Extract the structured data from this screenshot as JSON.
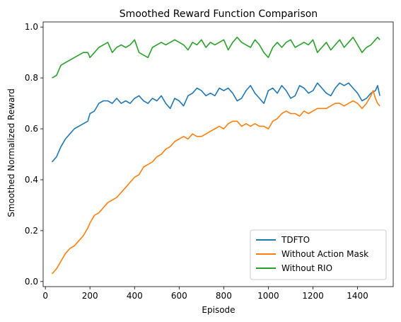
{
  "chart_data": {
    "type": "line",
    "title": "Smoothed Reward Function Comparison",
    "xlabel": "Episode",
    "ylabel": "Smoothed Normalized Reward",
    "xlim": [
      -10,
      1560
    ],
    "ylim": [
      -0.02,
      1.02
    ],
    "xticks": [
      0,
      200,
      400,
      600,
      800,
      1000,
      1200,
      1400
    ],
    "yticks": [
      0.0,
      0.2,
      0.4,
      0.6,
      0.8,
      1.0
    ],
    "grid": false,
    "legend_position": "lower-right",
    "series": [
      {
        "name": "TDFTO",
        "color": "#1f77b4",
        "points": [
          [
            30,
            0.47
          ],
          [
            50,
            0.49
          ],
          [
            70,
            0.53
          ],
          [
            90,
            0.56
          ],
          [
            110,
            0.58
          ],
          [
            130,
            0.6
          ],
          [
            150,
            0.61
          ],
          [
            170,
            0.62
          ],
          [
            190,
            0.63
          ],
          [
            200,
            0.66
          ],
          [
            220,
            0.67
          ],
          [
            240,
            0.7
          ],
          [
            260,
            0.71
          ],
          [
            280,
            0.71
          ],
          [
            300,
            0.7
          ],
          [
            320,
            0.72
          ],
          [
            340,
            0.7
          ],
          [
            360,
            0.71
          ],
          [
            380,
            0.7
          ],
          [
            400,
            0.72
          ],
          [
            420,
            0.73
          ],
          [
            440,
            0.71
          ],
          [
            460,
            0.7
          ],
          [
            480,
            0.72
          ],
          [
            500,
            0.71
          ],
          [
            520,
            0.73
          ],
          [
            540,
            0.7
          ],
          [
            560,
            0.68
          ],
          [
            580,
            0.72
          ],
          [
            600,
            0.71
          ],
          [
            620,
            0.69
          ],
          [
            640,
            0.73
          ],
          [
            660,
            0.74
          ],
          [
            680,
            0.76
          ],
          [
            700,
            0.75
          ],
          [
            720,
            0.73
          ],
          [
            740,
            0.74
          ],
          [
            760,
            0.73
          ],
          [
            780,
            0.76
          ],
          [
            800,
            0.75
          ],
          [
            820,
            0.76
          ],
          [
            840,
            0.74
          ],
          [
            860,
            0.71
          ],
          [
            880,
            0.72
          ],
          [
            900,
            0.75
          ],
          [
            920,
            0.77
          ],
          [
            940,
            0.74
          ],
          [
            960,
            0.72
          ],
          [
            980,
            0.7
          ],
          [
            1000,
            0.75
          ],
          [
            1020,
            0.76
          ],
          [
            1040,
            0.74
          ],
          [
            1060,
            0.77
          ],
          [
            1080,
            0.75
          ],
          [
            1100,
            0.72
          ],
          [
            1120,
            0.73
          ],
          [
            1140,
            0.77
          ],
          [
            1160,
            0.76
          ],
          [
            1180,
            0.74
          ],
          [
            1200,
            0.75
          ],
          [
            1220,
            0.78
          ],
          [
            1240,
            0.76
          ],
          [
            1260,
            0.74
          ],
          [
            1280,
            0.73
          ],
          [
            1300,
            0.76
          ],
          [
            1320,
            0.78
          ],
          [
            1340,
            0.77
          ],
          [
            1360,
            0.78
          ],
          [
            1380,
            0.76
          ],
          [
            1400,
            0.74
          ],
          [
            1420,
            0.71
          ],
          [
            1440,
            0.72
          ],
          [
            1460,
            0.74
          ],
          [
            1480,
            0.75
          ],
          [
            1490,
            0.77
          ],
          [
            1500,
            0.73
          ]
        ]
      },
      {
        "name": "Without Action Mask",
        "color": "#ff7f0e",
        "points": [
          [
            30,
            0.03
          ],
          [
            50,
            0.05
          ],
          [
            70,
            0.08
          ],
          [
            90,
            0.11
          ],
          [
            110,
            0.13
          ],
          [
            130,
            0.14
          ],
          [
            150,
            0.16
          ],
          [
            170,
            0.18
          ],
          [
            190,
            0.21
          ],
          [
            200,
            0.23
          ],
          [
            220,
            0.26
          ],
          [
            240,
            0.27
          ],
          [
            260,
            0.29
          ],
          [
            280,
            0.31
          ],
          [
            300,
            0.32
          ],
          [
            320,
            0.33
          ],
          [
            340,
            0.35
          ],
          [
            360,
            0.37
          ],
          [
            380,
            0.39
          ],
          [
            400,
            0.41
          ],
          [
            420,
            0.42
          ],
          [
            440,
            0.45
          ],
          [
            460,
            0.46
          ],
          [
            480,
            0.47
          ],
          [
            500,
            0.49
          ],
          [
            520,
            0.5
          ],
          [
            540,
            0.52
          ],
          [
            560,
            0.53
          ],
          [
            580,
            0.55
          ],
          [
            600,
            0.56
          ],
          [
            620,
            0.57
          ],
          [
            640,
            0.56
          ],
          [
            660,
            0.58
          ],
          [
            680,
            0.57
          ],
          [
            700,
            0.57
          ],
          [
            720,
            0.58
          ],
          [
            740,
            0.59
          ],
          [
            760,
            0.6
          ],
          [
            780,
            0.61
          ],
          [
            800,
            0.6
          ],
          [
            820,
            0.62
          ],
          [
            840,
            0.63
          ],
          [
            860,
            0.63
          ],
          [
            880,
            0.61
          ],
          [
            900,
            0.62
          ],
          [
            920,
            0.61
          ],
          [
            940,
            0.62
          ],
          [
            960,
            0.61
          ],
          [
            980,
            0.61
          ],
          [
            1000,
            0.6
          ],
          [
            1020,
            0.63
          ],
          [
            1040,
            0.64
          ],
          [
            1060,
            0.66
          ],
          [
            1080,
            0.67
          ],
          [
            1100,
            0.66
          ],
          [
            1120,
            0.66
          ],
          [
            1140,
            0.65
          ],
          [
            1160,
            0.67
          ],
          [
            1180,
            0.66
          ],
          [
            1200,
            0.67
          ],
          [
            1220,
            0.68
          ],
          [
            1240,
            0.68
          ],
          [
            1260,
            0.68
          ],
          [
            1280,
            0.69
          ],
          [
            1300,
            0.7
          ],
          [
            1320,
            0.7
          ],
          [
            1340,
            0.69
          ],
          [
            1360,
            0.7
          ],
          [
            1380,
            0.71
          ],
          [
            1400,
            0.7
          ],
          [
            1420,
            0.68
          ],
          [
            1440,
            0.7
          ],
          [
            1460,
            0.73
          ],
          [
            1470,
            0.75
          ],
          [
            1480,
            0.72
          ],
          [
            1490,
            0.7
          ],
          [
            1500,
            0.69
          ]
        ]
      },
      {
        "name": "Without RIO",
        "color": "#2ca02c",
        "points": [
          [
            30,
            0.8
          ],
          [
            50,
            0.81
          ],
          [
            70,
            0.85
          ],
          [
            90,
            0.86
          ],
          [
            110,
            0.87
          ],
          [
            130,
            0.88
          ],
          [
            150,
            0.89
          ],
          [
            170,
            0.9
          ],
          [
            190,
            0.9
          ],
          [
            200,
            0.88
          ],
          [
            220,
            0.9
          ],
          [
            240,
            0.92
          ],
          [
            260,
            0.93
          ],
          [
            280,
            0.94
          ],
          [
            300,
            0.9
          ],
          [
            320,
            0.92
          ],
          [
            340,
            0.93
          ],
          [
            360,
            0.92
          ],
          [
            380,
            0.93
          ],
          [
            400,
            0.95
          ],
          [
            420,
            0.9
          ],
          [
            440,
            0.89
          ],
          [
            460,
            0.88
          ],
          [
            480,
            0.92
          ],
          [
            500,
            0.93
          ],
          [
            520,
            0.94
          ],
          [
            540,
            0.93
          ],
          [
            560,
            0.94
          ],
          [
            580,
            0.95
          ],
          [
            600,
            0.94
          ],
          [
            620,
            0.93
          ],
          [
            640,
            0.91
          ],
          [
            660,
            0.94
          ],
          [
            680,
            0.93
          ],
          [
            700,
            0.95
          ],
          [
            720,
            0.92
          ],
          [
            740,
            0.94
          ],
          [
            760,
            0.93
          ],
          [
            780,
            0.94
          ],
          [
            800,
            0.95
          ],
          [
            820,
            0.91
          ],
          [
            840,
            0.94
          ],
          [
            860,
            0.96
          ],
          [
            880,
            0.94
          ],
          [
            900,
            0.93
          ],
          [
            920,
            0.92
          ],
          [
            940,
            0.95
          ],
          [
            960,
            0.93
          ],
          [
            980,
            0.9
          ],
          [
            1000,
            0.88
          ],
          [
            1020,
            0.92
          ],
          [
            1040,
            0.94
          ],
          [
            1060,
            0.92
          ],
          [
            1080,
            0.94
          ],
          [
            1100,
            0.95
          ],
          [
            1120,
            0.92
          ],
          [
            1140,
            0.93
          ],
          [
            1160,
            0.94
          ],
          [
            1180,
            0.93
          ],
          [
            1200,
            0.95
          ],
          [
            1220,
            0.9
          ],
          [
            1240,
            0.92
          ],
          [
            1260,
            0.94
          ],
          [
            1280,
            0.91
          ],
          [
            1300,
            0.93
          ],
          [
            1320,
            0.95
          ],
          [
            1340,
            0.92
          ],
          [
            1360,
            0.94
          ],
          [
            1380,
            0.96
          ],
          [
            1400,
            0.93
          ],
          [
            1420,
            0.9
          ],
          [
            1440,
            0.92
          ],
          [
            1460,
            0.93
          ],
          [
            1480,
            0.95
          ],
          [
            1490,
            0.96
          ],
          [
            1500,
            0.95
          ]
        ]
      }
    ]
  }
}
